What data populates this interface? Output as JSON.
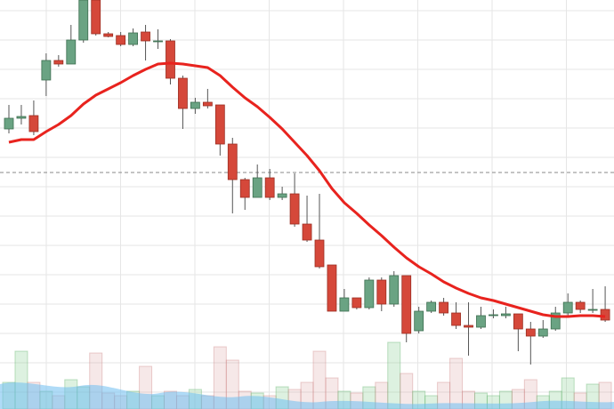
{
  "chart_data": {
    "type": "candlestick",
    "ylim": [
      0,
      460
    ],
    "yticks": [
      19,
      52,
      85,
      118,
      151,
      184,
      217,
      250,
      283,
      316,
      349,
      382,
      415,
      448
    ],
    "grid": true,
    "up_color": "#6aa383",
    "down_color": "#d5483a",
    "reference_line": 266,
    "open": [
      315,
      327,
      330,
      370,
      392,
      388,
      415,
      460,
      422,
      420,
      410,
      424,
      414,
      414,
      372,
      338,
      345,
      342,
      298,
      258,
      238,
      260,
      238,
      242,
      208,
      190,
      162,
      110,
      125,
      114,
      145,
      118,
      150,
      88,
      110,
      120,
      108,
      94,
      92,
      106,
      105,
      107,
      90,
      82,
      90,
      108,
      120,
      112,
      112
    ],
    "close": [
      327,
      329,
      312,
      392,
      388,
      415,
      460,
      422,
      419,
      410,
      423,
      414,
      414,
      372,
      338,
      345,
      341,
      298,
      258,
      238,
      260,
      238,
      242,
      208,
      190,
      160,
      110,
      125,
      114,
      145,
      118,
      150,
      85,
      110,
      120,
      108,
      94,
      92,
      105,
      106,
      107,
      90,
      82,
      90,
      108,
      120,
      112,
      112,
      100
    ],
    "high": [
      342,
      342,
      347,
      400,
      398,
      432,
      460,
      460,
      424,
      424,
      428,
      432,
      427,
      416,
      375,
      350,
      360,
      342,
      305,
      260,
      275,
      270,
      250,
      265,
      240,
      242,
      162,
      135,
      125,
      148,
      148,
      155,
      150,
      115,
      122,
      125,
      120,
      120,
      115,
      112,
      115,
      107,
      98,
      100,
      115,
      130,
      122,
      135,
      138
    ],
    "low": [
      310,
      320,
      308,
      352,
      385,
      388,
      412,
      420,
      418,
      408,
      408,
      392,
      405,
      365,
      315,
      332,
      338,
      285,
      220,
      224,
      238,
      235,
      235,
      205,
      188,
      158,
      110,
      110,
      112,
      112,
      110,
      115,
      75,
      85,
      108,
      105,
      90,
      60,
      90,
      102,
      102,
      65,
      50,
      80,
      88,
      105,
      108,
      108,
      98
    ],
    "moving_average": {
      "color": "#e8231e",
      "values": [
        300,
        303,
        303,
        312,
        320,
        330,
        343,
        353,
        360,
        367,
        375,
        382,
        388,
        389,
        388,
        386,
        384,
        375,
        362,
        350,
        340,
        328,
        315,
        300,
        285,
        268,
        248,
        232,
        220,
        207,
        195,
        182,
        170,
        160,
        152,
        143,
        136,
        130,
        125,
        122,
        118,
        114,
        110,
        106,
        104,
        104,
        105,
        105,
        104
      ]
    },
    "volume": [
      30,
      65,
      30,
      20,
      15,
      33,
      25,
      63,
      18,
      15,
      20,
      48,
      15,
      20,
      15,
      22,
      15,
      70,
      55,
      20,
      18,
      15,
      25,
      22,
      30,
      65,
      35,
      20,
      18,
      25,
      30,
      75,
      40,
      20,
      15,
      30,
      57,
      20,
      18,
      15,
      20,
      22,
      33,
      15,
      20,
      35,
      18,
      28,
      30
    ],
    "vlim": [
      0,
      460
    ]
  }
}
